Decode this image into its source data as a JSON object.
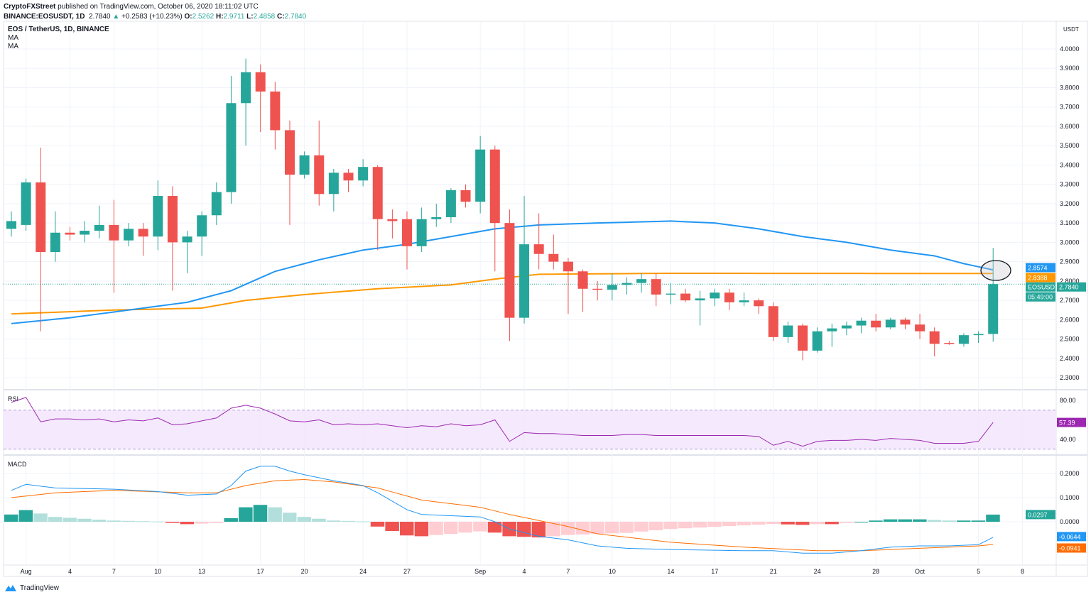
{
  "header": {
    "publisher": "CryptoFXStreet",
    "published_text": "published on TradingView.com, October 06, 2020 18:11:02 UTC",
    "symbol_line": "BINANCE:EOSUSDT, 1D",
    "last": "2.7840",
    "change": "+0.2583 (+10.23%)",
    "o_label": "O:",
    "o": "2.5262",
    "h_label": "H:",
    "h": "2.9711",
    "l_label": "L:",
    "l": "2.4858",
    "c_label": "C:",
    "c": "2.7840"
  },
  "legend": {
    "title": "EOS / TetherUS, 1D, BINANCE",
    "ma1": "MA",
    "ma2": "MA"
  },
  "footer": {
    "brand": "TradingView"
  },
  "colors": {
    "up": "#26a69a",
    "down": "#ef5350",
    "ma_fast": "#2196f3",
    "ma_slow": "#ff9800",
    "rsi": "#9c27b0",
    "macd": "#2196f3",
    "signal": "#ff6d00"
  },
  "chart_data": {
    "type": "candlestick",
    "title": "EOS / TetherUS, 1D, BINANCE",
    "price_axis": {
      "unit": "USDT",
      "ylim": [
        2.22,
        4.1
      ],
      "ticks": [
        "2.3000",
        "2.4000",
        "2.5000",
        "2.6000",
        "2.7000",
        "2.8000",
        "2.9000",
        "3.0000",
        "3.1000",
        "3.2000",
        "3.3000",
        "3.4000",
        "3.5000",
        "3.6000",
        "3.7000",
        "3.8000",
        "3.9000",
        "4.0000"
      ]
    },
    "date_ticks": [
      {
        "label": "Aug",
        "i": 1
      },
      {
        "label": "4",
        "i": 4
      },
      {
        "label": "7",
        "i": 7
      },
      {
        "label": "10",
        "i": 10
      },
      {
        "label": "13",
        "i": 13
      },
      {
        "label": "17",
        "i": 17
      },
      {
        "label": "20",
        "i": 20
      },
      {
        "label": "24",
        "i": 24
      },
      {
        "label": "27",
        "i": 27
      },
      {
        "label": "Sep",
        "i": 32
      },
      {
        "label": "4",
        "i": 35
      },
      {
        "label": "7",
        "i": 38
      },
      {
        "label": "10",
        "i": 41
      },
      {
        "label": "14",
        "i": 45
      },
      {
        "label": "17",
        "i": 48
      },
      {
        "label": "21",
        "i": 52
      },
      {
        "label": "24",
        "i": 55
      },
      {
        "label": "28",
        "i": 59
      },
      {
        "label": "Oct",
        "i": 62
      },
      {
        "label": "5",
        "i": 66
      },
      {
        "label": "8",
        "i": 69
      }
    ],
    "ohlc": [
      [
        3.07,
        3.16,
        3.03,
        3.11
      ],
      [
        3.09,
        3.33,
        3.06,
        3.31
      ],
      [
        3.31,
        3.49,
        2.54,
        2.95
      ],
      [
        2.95,
        3.16,
        2.9,
        3.05
      ],
      [
        3.05,
        3.08,
        3.01,
        3.04
      ],
      [
        3.04,
        3.11,
        3.0,
        3.06
      ],
      [
        3.06,
        3.19,
        3.02,
        3.09
      ],
      [
        3.09,
        3.22,
        2.74,
        3.01
      ],
      [
        3.01,
        3.1,
        2.98,
        3.07
      ],
      [
        3.07,
        3.1,
        2.93,
        3.03
      ],
      [
        3.03,
        3.32,
        2.96,
        3.24
      ],
      [
        3.24,
        3.29,
        2.75,
        3.0
      ],
      [
        3.0,
        3.06,
        2.84,
        3.03
      ],
      [
        3.03,
        3.16,
        2.93,
        3.14
      ],
      [
        3.14,
        3.31,
        3.09,
        3.26
      ],
      [
        3.26,
        3.86,
        3.2,
        3.72
      ],
      [
        3.72,
        3.95,
        3.5,
        3.88
      ],
      [
        3.88,
        3.92,
        3.57,
        3.78
      ],
      [
        3.78,
        3.83,
        3.48,
        3.58
      ],
      [
        3.58,
        3.63,
        3.09,
        3.35
      ],
      [
        3.35,
        3.47,
        3.33,
        3.45
      ],
      [
        3.45,
        3.63,
        3.19,
        3.25
      ],
      [
        3.25,
        3.38,
        3.16,
        3.36
      ],
      [
        3.36,
        3.38,
        3.26,
        3.32
      ],
      [
        3.32,
        3.43,
        3.29,
        3.39
      ],
      [
        3.39,
        3.4,
        2.96,
        3.12
      ],
      [
        3.12,
        3.17,
        3.02,
        3.11
      ],
      [
        3.12,
        3.16,
        2.86,
        2.98
      ],
      [
        2.98,
        3.18,
        2.95,
        3.12
      ],
      [
        3.12,
        3.2,
        3.08,
        3.13
      ],
      [
        3.13,
        3.28,
        3.1,
        3.27
      ],
      [
        3.27,
        3.3,
        3.18,
        3.21
      ],
      [
        3.21,
        3.55,
        3.15,
        3.48
      ],
      [
        3.48,
        3.5,
        2.85,
        3.1
      ],
      [
        3.1,
        3.17,
        2.49,
        2.61
      ],
      [
        2.61,
        3.24,
        2.58,
        2.99
      ],
      [
        2.99,
        3.15,
        2.86,
        2.94
      ],
      [
        2.94,
        3.04,
        2.86,
        2.9
      ],
      [
        2.9,
        2.92,
        2.63,
        2.85
      ],
      [
        2.85,
        2.86,
        2.64,
        2.76
      ],
      [
        2.76,
        2.8,
        2.7,
        2.755
      ],
      [
        2.755,
        2.84,
        2.7,
        2.78
      ],
      [
        2.78,
        2.82,
        2.73,
        2.79
      ],
      [
        2.79,
        2.84,
        2.74,
        2.81
      ],
      [
        2.81,
        2.84,
        2.67,
        2.73
      ],
      [
        2.73,
        2.79,
        2.68,
        2.735
      ],
      [
        2.735,
        2.76,
        2.69,
        2.7
      ],
      [
        2.7,
        2.75,
        2.57,
        2.71
      ],
      [
        2.71,
        2.76,
        2.67,
        2.74
      ],
      [
        2.74,
        2.76,
        2.65,
        2.69
      ],
      [
        2.69,
        2.74,
        2.67,
        2.7
      ],
      [
        2.7,
        2.71,
        2.63,
        2.67
      ],
      [
        2.67,
        2.69,
        2.49,
        2.51
      ],
      [
        2.51,
        2.59,
        2.48,
        2.57
      ],
      [
        2.57,
        2.58,
        2.39,
        2.44
      ],
      [
        2.44,
        2.56,
        2.43,
        2.54
      ],
      [
        2.54,
        2.58,
        2.46,
        2.555
      ],
      [
        2.555,
        2.59,
        2.52,
        2.57
      ],
      [
        2.57,
        2.61,
        2.53,
        2.595
      ],
      [
        2.595,
        2.63,
        2.54,
        2.56
      ],
      [
        2.56,
        2.61,
        2.55,
        2.6
      ],
      [
        2.6,
        2.61,
        2.55,
        2.575
      ],
      [
        2.575,
        2.63,
        2.5,
        2.54
      ],
      [
        2.54,
        2.56,
        2.41,
        2.475
      ],
      [
        2.48,
        2.49,
        2.47,
        2.475
      ],
      [
        2.475,
        2.53,
        2.46,
        2.52
      ],
      [
        2.52,
        2.54,
        2.48,
        2.526
      ],
      [
        2.5262,
        2.9711,
        2.4858,
        2.784
      ]
    ],
    "ma_fast_keypoints": [
      [
        0,
        2.58
      ],
      [
        4,
        2.61
      ],
      [
        8,
        2.65
      ],
      [
        12,
        2.69
      ],
      [
        15,
        2.75
      ],
      [
        18,
        2.85
      ],
      [
        21,
        2.91
      ],
      [
        24,
        2.96
      ],
      [
        27,
        2.99
      ],
      [
        30,
        3.03
      ],
      [
        33,
        3.07
      ],
      [
        36,
        3.09
      ],
      [
        40,
        3.1
      ],
      [
        45,
        3.11
      ],
      [
        48,
        3.1
      ],
      [
        51,
        3.07
      ],
      [
        54,
        3.03
      ],
      [
        57,
        3.0
      ],
      [
        60,
        2.96
      ],
      [
        63,
        2.93
      ],
      [
        65,
        2.89
      ],
      [
        67,
        2.8574
      ]
    ],
    "ma_slow_keypoints": [
      [
        0,
        2.63
      ],
      [
        7,
        2.65
      ],
      [
        13,
        2.66
      ],
      [
        16,
        2.7
      ],
      [
        20,
        2.73
      ],
      [
        25,
        2.76
      ],
      [
        30,
        2.78
      ],
      [
        33,
        2.81
      ],
      [
        36,
        2.835
      ],
      [
        45,
        2.84
      ],
      [
        67,
        2.8388
      ]
    ],
    "labels": {
      "ma_fast": "2.8574",
      "ma_slow": "2.8388",
      "symbol": "EOSUSDT",
      "last": "2.7840",
      "countdown": "05:49:00"
    },
    "rsi": {
      "title": "RSI",
      "ticks": [
        "80.00",
        "40.00"
      ],
      "band": [
        30,
        70
      ],
      "current": "57.39",
      "values": [
        78,
        83,
        58,
        61,
        61,
        60,
        61,
        58,
        60,
        59,
        62,
        55,
        56,
        59,
        62,
        72,
        75,
        72,
        66,
        59,
        58,
        60,
        55,
        56,
        55,
        56,
        54,
        52,
        54,
        53,
        56,
        54,
        55,
        60,
        38,
        47,
        46,
        46,
        45,
        44,
        44,
        44,
        45,
        45,
        44,
        44,
        44,
        44,
        44,
        44,
        44,
        43,
        34,
        38,
        33,
        38,
        39,
        39,
        40,
        39,
        41,
        40,
        39,
        36,
        36,
        36,
        38,
        57.39
      ]
    },
    "macd": {
      "title": "MACD",
      "ticks": [
        "0.2000",
        "0.1000",
        "0.0000"
      ],
      "ylim": [
        -0.17,
        0.25
      ],
      "histogram_label": "0.0297",
      "macd_label": "-0.0644",
      "signal_label": "-0.0941",
      "macd_keypoints": [
        [
          0,
          0.13
        ],
        [
          1,
          0.155
        ],
        [
          3,
          0.14
        ],
        [
          7,
          0.135
        ],
        [
          10,
          0.125
        ],
        [
          12,
          0.11
        ],
        [
          14,
          0.115
        ],
        [
          15,
          0.15
        ],
        [
          16,
          0.21
        ],
        [
          17,
          0.23
        ],
        [
          18,
          0.23
        ],
        [
          19,
          0.21
        ],
        [
          20,
          0.195
        ],
        [
          22,
          0.17
        ],
        [
          24,
          0.15
        ],
        [
          25,
          0.12
        ],
        [
          27,
          0.05
        ],
        [
          28,
          0.03
        ],
        [
          30,
          0.025
        ],
        [
          32,
          0.02
        ],
        [
          33,
          0.0
        ],
        [
          34,
          -0.03
        ],
        [
          36,
          -0.06
        ],
        [
          38,
          -0.075
        ],
        [
          40,
          -0.1
        ],
        [
          42,
          -0.11
        ],
        [
          45,
          -0.115
        ],
        [
          50,
          -0.12
        ],
        [
          52,
          -0.12
        ],
        [
          54,
          -0.13
        ],
        [
          56,
          -0.13
        ],
        [
          58,
          -0.12
        ],
        [
          60,
          -0.105
        ],
        [
          62,
          -0.1
        ],
        [
          64,
          -0.1
        ],
        [
          66,
          -0.095
        ],
        [
          67,
          -0.0644
        ]
      ],
      "signal_keypoints": [
        [
          0,
          0.1
        ],
        [
          3,
          0.12
        ],
        [
          7,
          0.13
        ],
        [
          12,
          0.12
        ],
        [
          14,
          0.12
        ],
        [
          16,
          0.15
        ],
        [
          18,
          0.17
        ],
        [
          20,
          0.175
        ],
        [
          22,
          0.165
        ],
        [
          25,
          0.14
        ],
        [
          28,
          0.09
        ],
        [
          32,
          0.06
        ],
        [
          34,
          0.03
        ],
        [
          38,
          -0.02
        ],
        [
          40,
          -0.05
        ],
        [
          45,
          -0.085
        ],
        [
          50,
          -0.105
        ],
        [
          55,
          -0.12
        ],
        [
          58,
          -0.12
        ],
        [
          62,
          -0.11
        ],
        [
          66,
          -0.1
        ],
        [
          67,
          -0.0941
        ]
      ]
    }
  }
}
